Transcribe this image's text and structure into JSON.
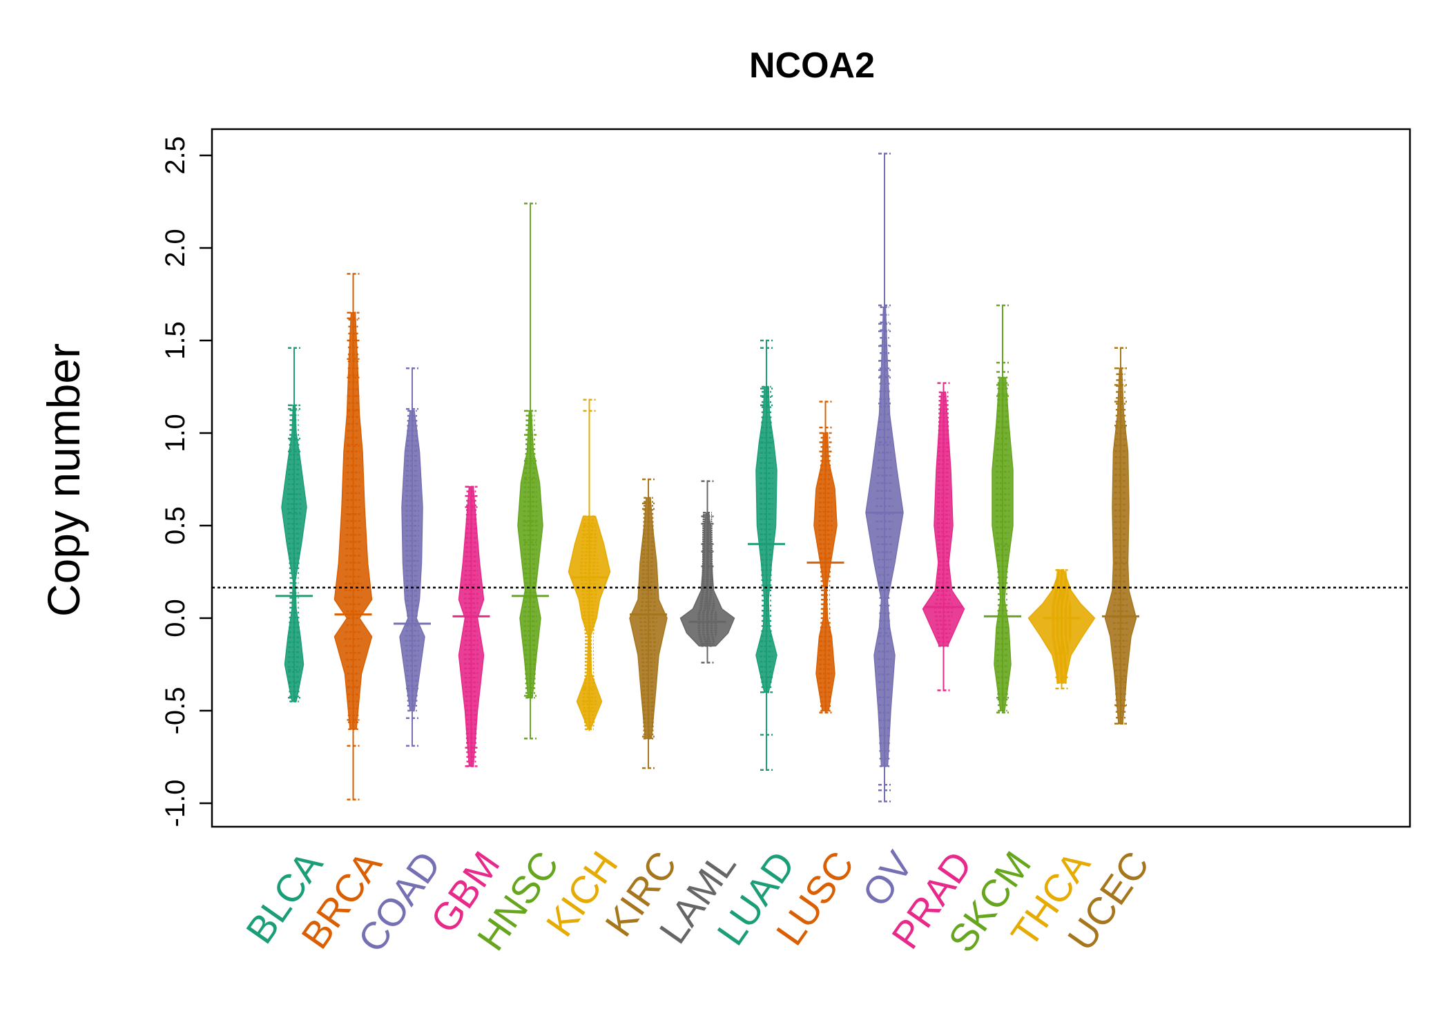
{
  "chart_data": {
    "type": "beanplot",
    "title": "NCOA2",
    "ylabel": "Copy number",
    "ylim": [
      -1.1,
      2.65
    ],
    "yticks": [
      "-1.0",
      "-0.5",
      "0.0",
      "0.5",
      "1.0",
      "1.5",
      "2.0",
      "2.5"
    ],
    "reference_line": 0.165,
    "categories": [
      "BLCA",
      "BRCA",
      "COAD",
      "GBM",
      "HNSC",
      "KICH",
      "KIRC",
      "LAML",
      "LUAD",
      "LUSC",
      "OV",
      "PRAD",
      "SKCM",
      "THCA",
      "UCEC"
    ],
    "series": [
      {
        "name": "BLCA",
        "color": "#1b9e77",
        "min": -0.45,
        "max": 1.46,
        "median": 0.12,
        "density": [
          [
            -0.45,
            0.1
          ],
          [
            -0.25,
            0.45
          ],
          [
            -0.1,
            0.3
          ],
          [
            0.05,
            0.1
          ],
          [
            0.2,
            0.05
          ],
          [
            0.4,
            0.35
          ],
          [
            0.6,
            0.6
          ],
          [
            0.85,
            0.3
          ],
          [
            1.0,
            0.1
          ],
          [
            1.15,
            0.05
          ]
        ],
        "outliers": [
          1.46,
          1.15,
          1.13,
          0.97,
          0.9,
          0.67,
          0.57,
          -0.28,
          -0.35,
          -0.43
        ]
      },
      {
        "name": "BRCA",
        "color": "#d95f02",
        "min": -0.98,
        "max": 1.86,
        "median": 0.02,
        "density": [
          [
            -0.6,
            0.15
          ],
          [
            -0.3,
            0.4
          ],
          [
            -0.1,
            0.9
          ],
          [
            0.0,
            0.3
          ],
          [
            0.1,
            0.9
          ],
          [
            0.3,
            0.7
          ],
          [
            0.6,
            0.55
          ],
          [
            0.9,
            0.45
          ],
          [
            1.1,
            0.3
          ],
          [
            1.4,
            0.2
          ],
          [
            1.65,
            0.1
          ]
        ],
        "outliers": [
          1.86,
          1.65,
          1.62,
          1.5,
          1.4,
          1.3,
          1.2,
          1.12,
          0.93,
          0.56,
          -0.37,
          -0.55,
          -0.69,
          -0.98
        ]
      },
      {
        "name": "COAD",
        "color": "#7570b3",
        "min": -0.69,
        "max": 1.35,
        "median": -0.03,
        "density": [
          [
            -0.5,
            0.1
          ],
          [
            -0.3,
            0.35
          ],
          [
            -0.1,
            0.6
          ],
          [
            0.0,
            0.2
          ],
          [
            0.1,
            0.35
          ],
          [
            0.3,
            0.45
          ],
          [
            0.6,
            0.5
          ],
          [
            0.9,
            0.35
          ],
          [
            1.12,
            0.1
          ]
        ],
        "outliers": [
          1.35,
          1.13,
          0.31,
          -0.03,
          -0.38,
          -0.54,
          -0.69
        ]
      },
      {
        "name": "GBM",
        "color": "#e7298a",
        "min": -0.8,
        "max": 0.71,
        "median": 0.01,
        "density": [
          [
            -0.8,
            0.1
          ],
          [
            -0.5,
            0.3
          ],
          [
            -0.2,
            0.6
          ],
          [
            0.0,
            0.3
          ],
          [
            0.1,
            0.6
          ],
          [
            0.3,
            0.4
          ],
          [
            0.5,
            0.25
          ],
          [
            0.71,
            0.1
          ]
        ],
        "outliers": [
          0.71,
          0.66,
          0.6,
          -0.7,
          -0.8
        ]
      },
      {
        "name": "HNSC",
        "color": "#66a61e",
        "min": -0.65,
        "max": 2.24,
        "median": 0.12,
        "density": [
          [
            -0.43,
            0.1
          ],
          [
            -0.2,
            0.3
          ],
          [
            0.0,
            0.5
          ],
          [
            0.15,
            0.25
          ],
          [
            0.3,
            0.4
          ],
          [
            0.5,
            0.6
          ],
          [
            0.73,
            0.45
          ],
          [
            0.9,
            0.15
          ],
          [
            1.12,
            0.05
          ]
        ],
        "outliers": [
          2.24,
          1.12,
          0.99,
          0.85,
          0.75,
          0.52,
          0.41,
          -0.42,
          -0.65
        ]
      },
      {
        "name": "KICH",
        "color": "#e6ab02",
        "min": -0.61,
        "max": 1.18,
        "median": 0.22,
        "density": [
          [
            -0.6,
            0.05
          ],
          [
            -0.45,
            0.6
          ],
          [
            -0.3,
            0.1
          ],
          [
            -0.1,
            0.05
          ],
          [
            0.0,
            0.35
          ],
          [
            0.1,
            0.5
          ],
          [
            0.25,
            1.0
          ],
          [
            0.4,
            0.7
          ],
          [
            0.55,
            0.3
          ]
        ],
        "outliers": [
          1.18,
          1.12,
          0.5,
          0.45,
          -0.38,
          -0.45,
          -0.5
        ]
      },
      {
        "name": "KIRC",
        "color": "#a6761d",
        "min": -0.81,
        "max": 0.75,
        "median": 0.02,
        "density": [
          [
            -0.65,
            0.15
          ],
          [
            -0.4,
            0.35
          ],
          [
            -0.2,
            0.5
          ],
          [
            0.0,
            0.9
          ],
          [
            0.1,
            0.5
          ],
          [
            0.3,
            0.4
          ],
          [
            0.5,
            0.2
          ],
          [
            0.65,
            0.1
          ]
        ],
        "outliers": [
          0.75,
          0.62,
          0.59,
          -0.64,
          -0.81
        ]
      },
      {
        "name": "LAML",
        "color": "#666666",
        "min": -0.24,
        "max": 0.74,
        "median": -0.02,
        "density": [
          [
            -0.15,
            0.4
          ],
          [
            -0.08,
            1.0
          ],
          [
            0.0,
            1.3
          ],
          [
            0.05,
            0.7
          ],
          [
            0.15,
            0.3
          ],
          [
            0.3,
            0.2
          ],
          [
            0.5,
            0.15
          ],
          [
            0.57,
            0.05
          ]
        ],
        "outliers": [
          0.74,
          0.55,
          0.51,
          0.4,
          0.36,
          0.28,
          -0.14,
          -0.24
        ]
      },
      {
        "name": "LUAD",
        "color": "#1b9e77",
        "min": -0.82,
        "max": 1.5,
        "median": 0.4,
        "density": [
          [
            -0.4,
            0.1
          ],
          [
            -0.2,
            0.5
          ],
          [
            -0.05,
            0.15
          ],
          [
            0.1,
            0.1
          ],
          [
            0.3,
            0.25
          ],
          [
            0.5,
            0.45
          ],
          [
            0.8,
            0.5
          ],
          [
            0.95,
            0.35
          ],
          [
            1.1,
            0.15
          ],
          [
            1.25,
            0.1
          ]
        ],
        "outliers": [
          1.5,
          1.46,
          1.24,
          1.2,
          1.15,
          0.95,
          0.4,
          -0.32,
          -0.4,
          -0.63,
          -0.82
        ]
      },
      {
        "name": "LUSC",
        "color": "#d95f02",
        "min": -0.51,
        "max": 1.17,
        "median": 0.3,
        "density": [
          [
            -0.5,
            0.15
          ],
          [
            -0.3,
            0.45
          ],
          [
            -0.1,
            0.3
          ],
          [
            0.0,
            0.1
          ],
          [
            0.15,
            0.05
          ],
          [
            0.3,
            0.25
          ],
          [
            0.5,
            0.55
          ],
          [
            0.7,
            0.45
          ],
          [
            0.85,
            0.15
          ],
          [
            1.0,
            0.1
          ]
        ],
        "outliers": [
          1.17,
          1.03,
          1.0,
          0.95,
          0.9,
          0.32,
          -0.51
        ]
      },
      {
        "name": "OV",
        "color": "#7570b3",
        "min": -0.99,
        "max": 2.51,
        "median": 0.57,
        "density": [
          [
            -0.8,
            0.15
          ],
          [
            -0.5,
            0.3
          ],
          [
            -0.2,
            0.5
          ],
          [
            -0.05,
            0.25
          ],
          [
            0.1,
            0.15
          ],
          [
            0.3,
            0.5
          ],
          [
            0.57,
            0.9
          ],
          [
            0.8,
            0.6
          ],
          [
            1.1,
            0.25
          ],
          [
            1.35,
            0.15
          ],
          [
            1.68,
            0.05
          ]
        ],
        "outliers": [
          2.51,
          1.69,
          1.59,
          1.55,
          1.47,
          1.39,
          1.34,
          1.3,
          1.16,
          0.95,
          0.57,
          -0.08,
          -0.9,
          -0.93,
          -0.99
        ]
      },
      {
        "name": "PRAD",
        "color": "#e7298a",
        "min": -0.39,
        "max": 1.27,
        "median": 0.06,
        "density": [
          [
            -0.15,
            0.2
          ],
          [
            -0.05,
            0.6
          ],
          [
            0.05,
            1.0
          ],
          [
            0.15,
            0.4
          ],
          [
            0.3,
            0.25
          ],
          [
            0.5,
            0.45
          ],
          [
            0.8,
            0.35
          ],
          [
            1.05,
            0.2
          ],
          [
            1.22,
            0.1
          ]
        ],
        "outliers": [
          1.27,
          0.44,
          -0.39
        ]
      },
      {
        "name": "SKCM",
        "color": "#66a61e",
        "min": -0.51,
        "max": 1.69,
        "median": 0.01,
        "density": [
          [
            -0.5,
            0.1
          ],
          [
            -0.25,
            0.4
          ],
          [
            -0.05,
            0.3
          ],
          [
            0.1,
            0.1
          ],
          [
            0.25,
            0.2
          ],
          [
            0.5,
            0.5
          ],
          [
            0.8,
            0.5
          ],
          [
            1.05,
            0.3
          ],
          [
            1.3,
            0.15
          ]
        ],
        "outliers": [
          1.69,
          1.38,
          1.33,
          1.26,
          1.2,
          1.03,
          0.39,
          -0.43,
          -0.51
        ]
      },
      {
        "name": "THCA",
        "color": "#e6ab02",
        "min": -0.38,
        "max": 0.26,
        "median": 0.0,
        "density": [
          [
            -0.35,
            0.15
          ],
          [
            -0.2,
            0.45
          ],
          [
            -0.1,
            1.0
          ],
          [
            0.0,
            1.6
          ],
          [
            0.08,
            0.9
          ],
          [
            0.15,
            0.45
          ],
          [
            0.26,
            0.1
          ]
        ],
        "outliers": [
          0.26,
          -0.19,
          -0.32,
          -0.38
        ]
      },
      {
        "name": "UCEC",
        "color": "#a6761d",
        "min": -0.57,
        "max": 1.46,
        "median": 0.01,
        "density": [
          [
            -0.57,
            0.1
          ],
          [
            -0.3,
            0.3
          ],
          [
            -0.1,
            0.5
          ],
          [
            0.0,
            0.75
          ],
          [
            0.15,
            0.4
          ],
          [
            0.3,
            0.35
          ],
          [
            0.6,
            0.4
          ],
          [
            0.9,
            0.35
          ],
          [
            1.1,
            0.15
          ],
          [
            1.35,
            0.05
          ]
        ],
        "outliers": [
          1.46,
          1.35,
          1.26,
          1.17,
          1.04,
          0.3,
          -0.33,
          -0.47,
          -0.57
        ]
      }
    ]
  }
}
